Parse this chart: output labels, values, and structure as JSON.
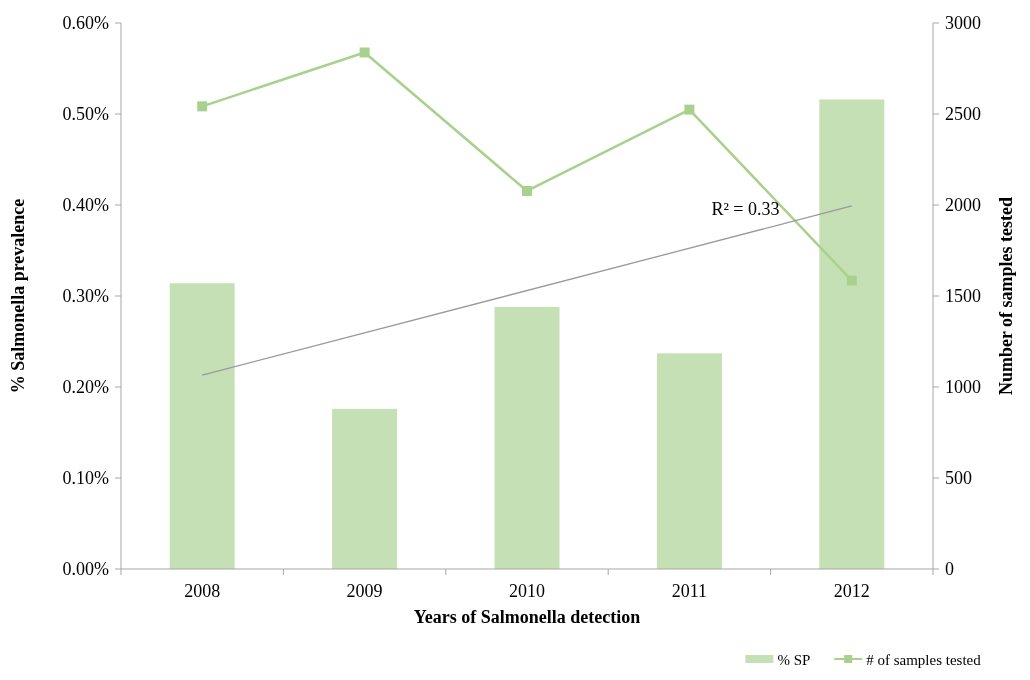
{
  "chart_data": {
    "type": "bar",
    "xlabel": "Years of Salmonella detection",
    "ylabel": "% Salmonella prevalence",
    "y2label": "Number of samples tested",
    "categories": [
      "2008",
      "2009",
      "2010",
      "2011",
      "2012"
    ],
    "series": [
      {
        "name": "% SP",
        "color": "#c5e0b4",
        "values": [
          0.314,
          0.176,
          0.288,
          0.237,
          0.516
        ]
      },
      {
        "name": "# of samples tested",
        "type": "line",
        "axis": "y2",
        "color": "#a9d18e",
        "marker": "square",
        "values": [
          2542,
          2838,
          2077,
          2524,
          1585
        ]
      },
      {
        "type": "line",
        "color": "#999999",
        "marker": "none",
        "values": [
          0.213,
          null,
          null,
          null,
          0.399
        ]
      }
    ],
    "ylim": [
      0,
      0.6
    ],
    "yticks": [
      {
        "value": 0,
        "label": "0.00%"
      },
      {
        "value": 0.1,
        "label": "0.10%"
      },
      {
        "value": 0.2,
        "label": "0.20%"
      },
      {
        "value": 0.3,
        "label": "0.30%"
      },
      {
        "value": 0.4,
        "label": "0.40%"
      },
      {
        "value": 0.5,
        "label": "0.50%"
      },
      {
        "value": 0.6,
        "label": "0.60%"
      }
    ],
    "y2lim": [
      0,
      3000
    ],
    "y2ticks": [
      0,
      500,
      1000,
      1500,
      2000,
      2500,
      3000
    ],
    "annotations": [
      "R² = 0.33"
    ],
    "legend": "bottom right",
    "grid": false
  }
}
